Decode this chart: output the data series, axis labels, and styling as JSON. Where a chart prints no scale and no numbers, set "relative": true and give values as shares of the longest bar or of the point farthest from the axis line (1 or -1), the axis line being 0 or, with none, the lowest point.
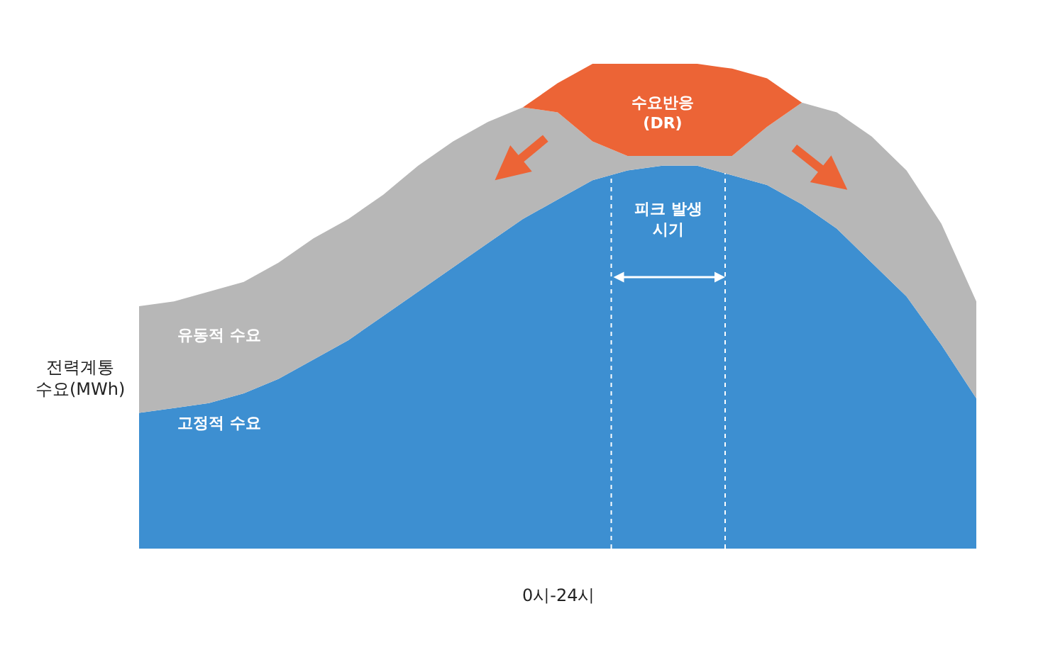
{
  "chart_data": {
    "type": "area",
    "relative": true,
    "stacked": true,
    "xlabel": "0시-24시",
    "ylabel": "전력계통\n수요(MWh)",
    "categories": [
      null,
      null,
      null,
      null,
      null,
      null,
      null,
      null,
      null,
      null,
      null,
      null,
      null,
      null,
      null,
      null,
      null,
      null,
      null,
      null,
      null,
      null,
      null,
      null,
      null
    ],
    "series": [
      {
        "color": "#3d8fd1",
        "values": [
          0.28,
          0.29,
          0.3,
          0.32,
          0.35,
          0.39,
          0.43,
          0.48,
          0.53,
          0.58,
          0.63,
          0.68,
          0.72,
          0.76,
          0.78,
          0.79,
          0.79,
          0.77,
          0.75,
          0.71,
          0.66,
          0.59,
          0.52,
          0.42,
          0.31
        ]
      },
      {
        "color": "#b7b7b7",
        "values": [
          0.22,
          0.22,
          0.23,
          0.23,
          0.24,
          0.25,
          0.25,
          0.25,
          0.26,
          0.26,
          0.25,
          0.23,
          0.18,
          0.08,
          0.03,
          0.02,
          0.02,
          0.04,
          0.12,
          0.21,
          0.24,
          0.26,
          0.26,
          0.25,
          0.2
        ]
      },
      {
        "color": "#ec6436",
        "values": [
          0,
          0,
          0,
          0,
          0,
          0,
          0,
          0,
          0,
          0,
          0,
          0,
          0.06,
          0.16,
          0.19,
          0.19,
          0.19,
          0.18,
          0.1,
          0,
          0,
          0,
          0,
          0,
          0
        ]
      }
    ],
    "annotations": [
      "수요반응\n(DR)",
      "피크 발생\n시기",
      "유동적 수요",
      "고정적 수요"
    ]
  }
}
